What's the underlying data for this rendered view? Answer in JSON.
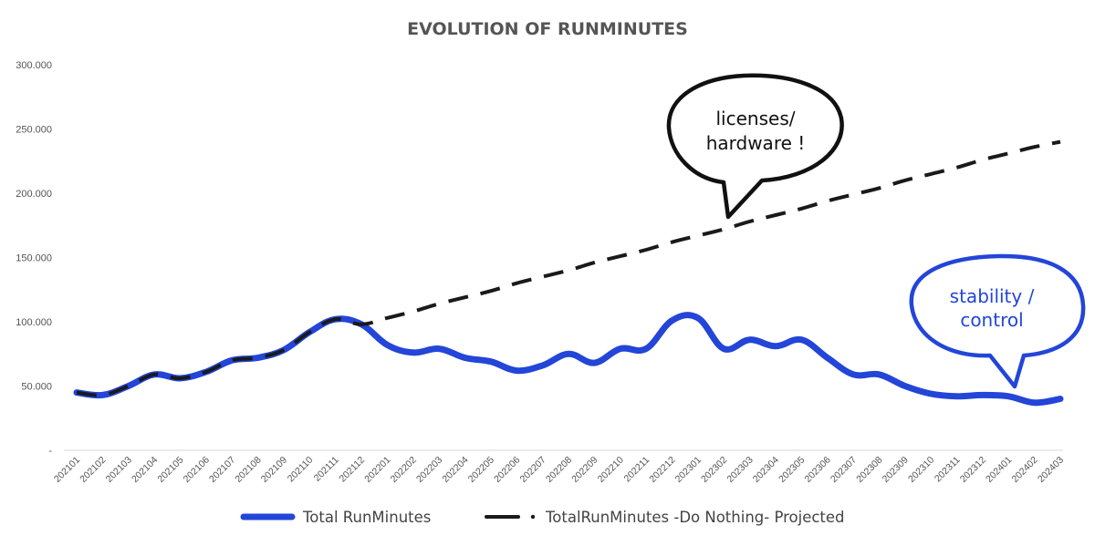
{
  "chart_data": {
    "type": "line",
    "title": "EVOLUTION OF RUNMINUTES",
    "xlabel": "",
    "ylabel": "",
    "ylim": [
      0,
      300000
    ],
    "y_ticks": [
      {
        "value": 0,
        "label": "-"
      },
      {
        "value": 50000,
        "label": "50.000"
      },
      {
        "value": 100000,
        "label": "100.000"
      },
      {
        "value": 150000,
        "label": "150.000"
      },
      {
        "value": 200000,
        "label": "200.000"
      },
      {
        "value": 250000,
        "label": "250.000"
      },
      {
        "value": 300000,
        "label": "300.000"
      }
    ],
    "grid": false,
    "legend_position": "bottom",
    "categories": [
      "202101",
      "202102",
      "202103",
      "202104",
      "202105",
      "202106",
      "202107",
      "202108",
      "202109",
      "202110",
      "202111",
      "202112",
      "202201",
      "202202",
      "202203",
      "202204",
      "202205",
      "202206",
      "202207",
      "202208",
      "202209",
      "202210",
      "202211",
      "202212",
      "202301",
      "202302",
      "202303",
      "202304",
      "202305",
      "202306",
      "202307",
      "202308",
      "202309",
      "202310",
      "202311",
      "202312",
      "202401",
      "202402",
      "202403"
    ],
    "series": [
      {
        "name": "Total RunMinutes",
        "color": "#2345d8",
        "style": "solid",
        "values": [
          45000,
          43000,
          50000,
          59000,
          56000,
          61000,
          70000,
          72000,
          78000,
          92000,
          102000,
          98000,
          82000,
          76000,
          79000,
          72000,
          69000,
          62000,
          66000,
          75000,
          68000,
          79000,
          79000,
          101000,
          103000,
          79000,
          86000,
          81000,
          86000,
          72000,
          59000,
          59000,
          50000,
          44000,
          42000,
          43000,
          42000,
          37000,
          40000
        ]
      },
      {
        "name": "TotalRunMinutes -Do Nothing- Projected",
        "color": "#1a1a1a",
        "style": "dashed",
        "values": [
          45000,
          43000,
          50000,
          59000,
          56000,
          61000,
          70000,
          72000,
          78000,
          92000,
          102000,
          98000,
          103000,
          108000,
          114000,
          119000,
          124000,
          130000,
          135000,
          140000,
          146000,
          151000,
          156000,
          162000,
          167000,
          172000,
          178000,
          183000,
          188000,
          194000,
          199000,
          204000,
          210000,
          215000,
          220000,
          226000,
          231000,
          236000,
          240000
        ]
      }
    ],
    "annotations": [
      {
        "lines": [
          "licenses/",
          "hardware !"
        ],
        "color": "#111111"
      },
      {
        "lines": [
          "stability /",
          "control"
        ],
        "color": "#2345d8"
      }
    ]
  }
}
